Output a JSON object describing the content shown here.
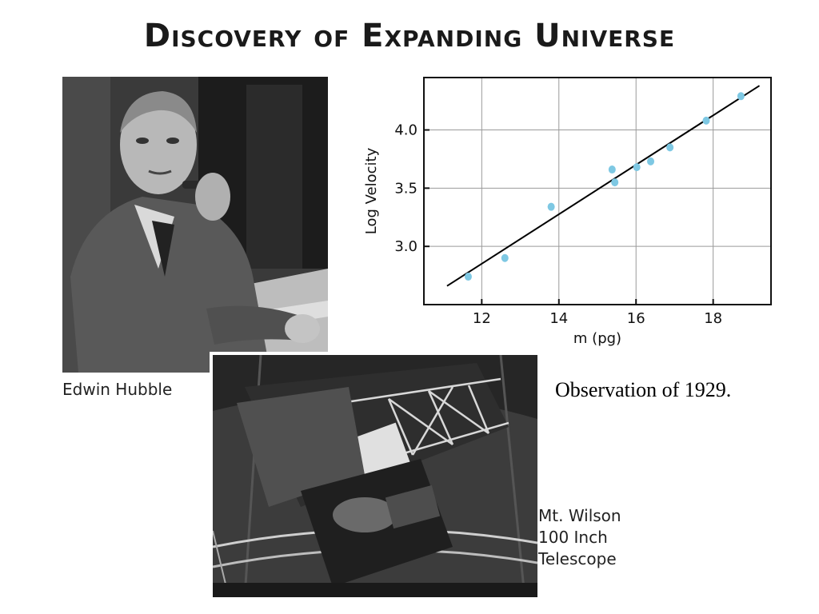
{
  "title": "Discovery of Expanding Universe",
  "photos": {
    "hubble": {
      "caption": "Edwin Hubble"
    },
    "telescope": {
      "caption_lines": [
        "Mt. Wilson",
        "100 Inch",
        "Telescope"
      ]
    }
  },
  "observation_caption": "Observation of 1929.",
  "chart_data": {
    "type": "scatter",
    "title": "",
    "xlabel": "m (pg)",
    "ylabel": "Log Velocity",
    "xlim": [
      10.5,
      19.5
    ],
    "ylim": [
      2.5,
      4.45
    ],
    "xticks": [
      12,
      14,
      16,
      18
    ],
    "yticks": [
      3.0,
      3.5,
      4.0
    ],
    "ytick_labels": [
      "3.0",
      "3.5",
      "4.0"
    ],
    "grid": true,
    "series": [
      {
        "x": [
          11.65,
          12.6,
          13.8,
          15.38,
          15.45,
          16.02,
          16.38,
          16.88,
          17.82,
          18.72
        ],
        "y": [
          2.74,
          2.9,
          3.34,
          3.66,
          3.55,
          3.68,
          3.73,
          3.85,
          4.08,
          4.29
        ],
        "color": "#7ec8e3"
      }
    ],
    "fit_line": {
      "x": [
        11.1,
        19.2
      ],
      "y": [
        2.66,
        4.38
      ],
      "color": "#000000"
    }
  }
}
